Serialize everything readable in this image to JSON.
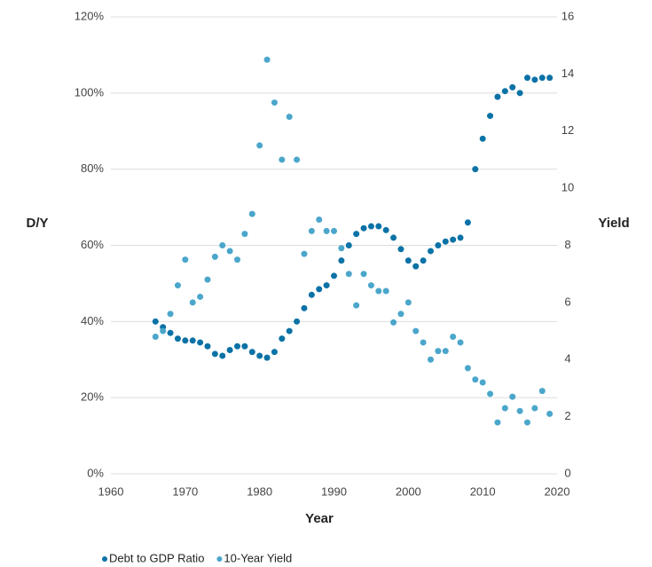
{
  "chart_data": {
    "type": "scatter",
    "x_label": "Year",
    "y_label": "D/Y",
    "y2_label": "Yield",
    "x": [
      1966,
      1967,
      1968,
      1969,
      1970,
      1971,
      1972,
      1973,
      1974,
      1975,
      1976,
      1977,
      1978,
      1979,
      1980,
      1981,
      1982,
      1983,
      1984,
      1985,
      1986,
      1987,
      1988,
      1989,
      1990,
      1991,
      1992,
      1993,
      1994,
      1995,
      1996,
      1997,
      1998,
      1999,
      2000,
      2001,
      2002,
      2003,
      2004,
      2005,
      2006,
      2007,
      2008,
      2009,
      2010,
      2011,
      2012,
      2013,
      2014,
      2015,
      2016,
      2017,
      2018,
      2019
    ],
    "series": [
      {
        "name": "Debt to GDP Ratio",
        "color": "#0b72a6",
        "values": [
          40,
          38.5,
          37,
          35.5,
          35,
          35,
          34.5,
          33.5,
          31.5,
          31,
          32.5,
          33.5,
          33.5,
          32,
          31,
          30.5,
          32,
          35.5,
          37.5,
          40,
          43.5,
          47,
          48.5,
          49.5,
          52,
          56,
          60,
          63,
          64.5,
          65,
          65,
          64,
          62,
          59,
          56,
          54.5,
          56,
          58.5,
          60,
          61,
          61.5,
          62,
          66,
          80,
          88,
          94,
          99,
          100.5,
          101.5,
          100,
          104,
          103.5,
          104,
          104
        ]
      },
      {
        "name": "10-Year Yield",
        "color": "#4ba6cb",
        "axis": "y2",
        "values": [
          4.8,
          5.0,
          5.6,
          6.6,
          7.5,
          6.0,
          6.2,
          6.8,
          7.6,
          8.0,
          7.8,
          7.5,
          8.4,
          9.1,
          11.5,
          14.5,
          13.0,
          11.0,
          12.5,
          11.0,
          7.7,
          8.5,
          8.9,
          8.5,
          8.5,
          7.9,
          7.0,
          5.9,
          7.0,
          6.6,
          6.4,
          6.4,
          5.3,
          5.6,
          6.0,
          5.0,
          4.6,
          4.0,
          4.3,
          4.3,
          4.8,
          4.6,
          3.7,
          3.3,
          3.2,
          2.8,
          1.8,
          2.3,
          2.7,
          2.2,
          1.8,
          2.3,
          2.9,
          2.1
        ]
      }
    ],
    "xlim": [
      1960,
      2020
    ],
    "xticks": [
      1960,
      1970,
      1980,
      1990,
      2000,
      2010,
      2020
    ],
    "ylim": [
      0,
      120
    ],
    "yticks": [
      {
        "value": 0,
        "label": "0%"
      },
      {
        "value": 20,
        "label": "20%"
      },
      {
        "value": 40,
        "label": "40%"
      },
      {
        "value": 60,
        "label": "60%"
      },
      {
        "value": 80,
        "label": "80%"
      },
      {
        "value": 100,
        "label": "100%"
      },
      {
        "value": 120,
        "label": "120%"
      }
    ],
    "y2lim": [
      0,
      16
    ],
    "y2ticks": [
      0,
      2,
      4,
      6,
      8,
      10,
      12,
      14,
      16
    ],
    "grid": true,
    "legend": "bottom"
  }
}
